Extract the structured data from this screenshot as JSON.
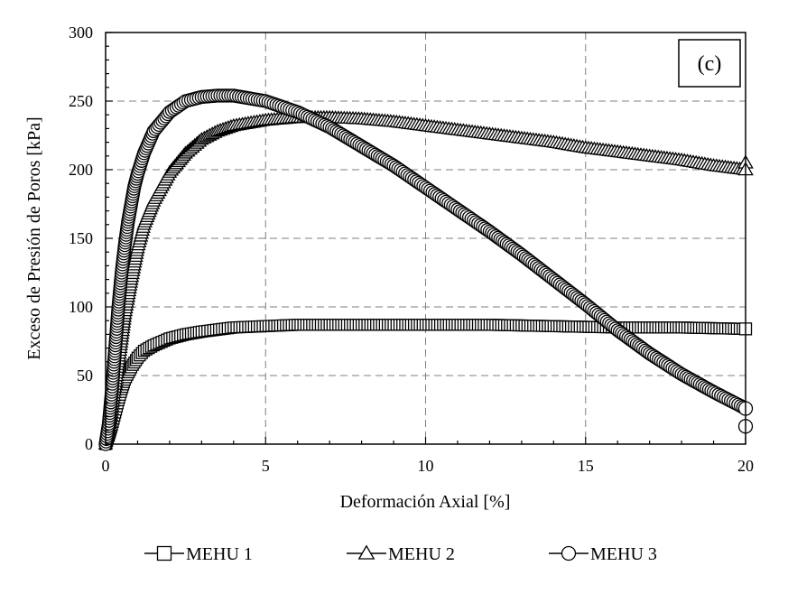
{
  "chart_data": {
    "type": "scatter",
    "panel_label": "(c)",
    "xlabel": "Deformación Axial [%]",
    "ylabel": "Exceso de Presión de Poros [kPa]",
    "xlim": [
      0,
      20
    ],
    "ylim": [
      0,
      300
    ],
    "x_ticks": [
      0,
      5,
      10,
      15,
      20
    ],
    "y_ticks": [
      0,
      50,
      100,
      150,
      200,
      250,
      300
    ],
    "grid": true,
    "legend_position": "bottom",
    "series": [
      {
        "name": "MEHU 1",
        "marker": "square",
        "x": [
          0,
          0.1,
          0.2,
          0.3,
          0.4,
          0.5,
          0.6,
          0.8,
          1,
          1.2,
          1.5,
          2,
          2.5,
          3,
          4,
          5,
          6,
          7,
          8,
          10,
          12,
          14,
          16,
          18,
          20
        ],
        "y": [
          0,
          6,
          14,
          23,
          32,
          40,
          47,
          56,
          63,
          68,
          72,
          77,
          80,
          82,
          85,
          86,
          87,
          87,
          87,
          87,
          87,
          86,
          85,
          85,
          84
        ]
      },
      {
        "name": "MEHU 2",
        "marker": "triangle",
        "x": [
          0,
          0.2,
          0.4,
          0.6,
          0.8,
          1,
          1.2,
          1.5,
          2,
          2.5,
          3,
          3.5,
          4,
          5,
          6,
          7,
          8,
          9,
          10,
          11,
          12,
          13,
          14,
          15,
          16,
          17,
          18,
          19,
          20
        ],
        "y": [
          0,
          25,
          60,
          95,
          120,
          143,
          160,
          177,
          198,
          212,
          222,
          228,
          232,
          236,
          238,
          238,
          237,
          235,
          232,
          229,
          226,
          223,
          220,
          216,
          213,
          210,
          207,
          203,
          200
        ]
      },
      {
        "name": "MEHU 3",
        "marker": "circle",
        "x": [
          0,
          0.1,
          0.2,
          0.3,
          0.4,
          0.5,
          0.6,
          0.7,
          0.8,
          0.9,
          1,
          1.2,
          1.5,
          2,
          2.5,
          3,
          3.5,
          4,
          5,
          6,
          7,
          8,
          9,
          10,
          11,
          12,
          13,
          14,
          15,
          16,
          17,
          18,
          19,
          20
        ],
        "y": [
          0,
          15,
          40,
          70,
          100,
          125,
          145,
          162,
          175,
          188,
          197,
          212,
          228,
          242,
          250,
          253,
          254,
          254,
          250,
          242,
          231,
          217,
          203,
          187,
          171,
          155,
          138,
          120,
          102,
          83,
          66,
          51,
          38,
          26
        ]
      }
    ],
    "end_markers": [
      {
        "series": "MEHU 1",
        "x": 20,
        "y": 84
      },
      {
        "series": "MEHU 2",
        "x": 20,
        "y": 205
      },
      {
        "series": "MEHU 2",
        "x": 20,
        "y": 200
      },
      {
        "series": "MEHU 3",
        "x": 20,
        "y": 26
      },
      {
        "series": "MEHU 3",
        "x": 20,
        "y": 13
      }
    ]
  }
}
